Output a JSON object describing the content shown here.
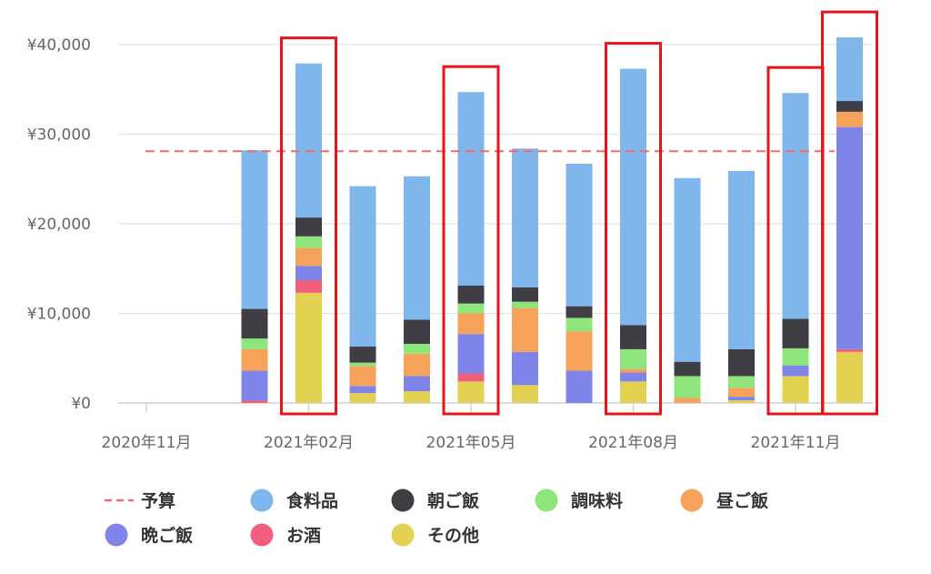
{
  "chart_data": {
    "type": "bar",
    "stacked": true,
    "title": "",
    "xlabel": "",
    "ylabel": "",
    "ylim": [
      0,
      41000
    ],
    "yticks": [
      "¥0",
      "¥10,000",
      "¥20,000",
      "¥30,000",
      "¥40,000"
    ],
    "ytick_values": [
      0,
      10000,
      20000,
      30000,
      40000
    ],
    "xtick_labels": [
      "2020年11月",
      "2021年02月",
      "2021年05月",
      "2021年08月",
      "2021年11月"
    ],
    "categories": [
      "2020年11月",
      "2020年12月",
      "2021年01月",
      "2021年02月",
      "2021年03月",
      "2021年04月",
      "2021年05月",
      "2021年06月",
      "2021年07月",
      "2021年08月",
      "2021年09月",
      "2021年10月",
      "2021年11月",
      "2021年12月"
    ],
    "budget": {
      "name": "予算",
      "value": 28100,
      "color": "#f26b6b"
    },
    "series": [
      {
        "name": "その他",
        "color": "#e3d152",
        "values": [
          0,
          0,
          0,
          12300,
          1100,
          1300,
          2400,
          2000,
          0,
          2400,
          0,
          300,
          3000,
          5700
        ]
      },
      {
        "name": "お酒",
        "color": "#f25f7e",
        "values": [
          0,
          0,
          300,
          1400,
          0,
          0,
          900,
          0,
          0,
          0,
          0,
          0,
          0,
          300
        ]
      },
      {
        "name": "晩ご飯",
        "color": "#7f84e8",
        "values": [
          0,
          0,
          3300,
          1600,
          800,
          1700,
          4400,
          3700,
          3600,
          1000,
          0,
          400,
          1200,
          24800
        ]
      },
      {
        "name": "昼ご飯",
        "color": "#f7a25a",
        "values": [
          0,
          0,
          2400,
          2000,
          2200,
          2500,
          2300,
          4900,
          4400,
          400,
          600,
          1000,
          0,
          1700
        ]
      },
      {
        "name": "調味料",
        "color": "#8ee57b",
        "values": [
          0,
          0,
          1200,
          1300,
          400,
          1100,
          1100,
          700,
          1500,
          2200,
          2400,
          1300,
          1900,
          0
        ]
      },
      {
        "name": "朝ご飯",
        "color": "#3e3e44",
        "values": [
          0,
          0,
          3300,
          2100,
          1800,
          2700,
          2000,
          1600,
          1300,
          2700,
          1600,
          3000,
          3300,
          1200
        ]
      },
      {
        "name": "食料品",
        "color": "#7fb6ec",
        "values": [
          0,
          0,
          17700,
          17200,
          17900,
          16000,
          21600,
          15500,
          15900,
          28600,
          20500,
          19900,
          25200,
          7100
        ]
      }
    ],
    "highlighted_categories": [
      "2021年02月",
      "2021年05月",
      "2021年08月",
      "2021年11月",
      "2021年12月"
    ],
    "highlight_color": "#e8141a",
    "grid": true,
    "legend_position": "bottom",
    "legend_items": [
      {
        "name": "予算",
        "kind": "dashed-line",
        "color": "#f26b6b"
      },
      {
        "name": "食料品",
        "kind": "circle",
        "color": "#7fb6ec"
      },
      {
        "name": "朝ご飯",
        "kind": "circle",
        "color": "#3e3e44"
      },
      {
        "name": "調味料",
        "kind": "circle",
        "color": "#8ee57b"
      },
      {
        "name": "昼ご飯",
        "kind": "circle",
        "color": "#f7a25a"
      },
      {
        "name": "晩ご飯",
        "kind": "circle",
        "color": "#7f84e8"
      },
      {
        "name": "お酒",
        "kind": "circle",
        "color": "#f25f7e"
      },
      {
        "name": "その他",
        "kind": "circle",
        "color": "#e3d152"
      }
    ]
  }
}
